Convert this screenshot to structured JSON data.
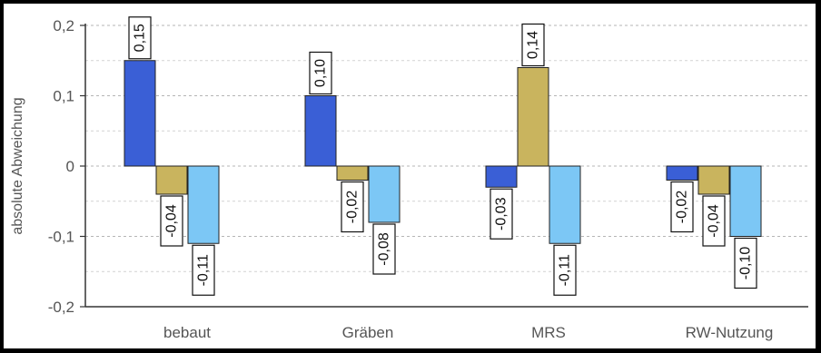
{
  "chart_data": {
    "type": "bar",
    "categories": [
      "bebaut",
      "Gräben",
      "MRS",
      "RW-Nutzung"
    ],
    "series": [
      {
        "color": "#3a5fd6",
        "values": [
          0.15,
          0.1,
          -0.03,
          -0.02
        ],
        "labels": [
          "0,15",
          "0,10",
          "-0,03",
          "-0,02"
        ]
      },
      {
        "color": "#c9b45e",
        "values": [
          -0.04,
          -0.02,
          0.14,
          -0.04
        ],
        "labels": [
          "-0,04",
          "-0,02",
          "0,14",
          "-0,04"
        ]
      },
      {
        "color": "#7cc7f5",
        "values": [
          -0.11,
          -0.08,
          -0.11,
          -0.1
        ],
        "labels": [
          "-0,11",
          "-0,08",
          "-0,11",
          "-0,10"
        ]
      }
    ],
    "ylabel": "absolute Abweichung",
    "ylim": [
      -0.2,
      0.2
    ],
    "yticks": [
      0.2,
      0.1,
      0,
      -0.1,
      -0.2
    ],
    "ytick_labels": [
      "0,2",
      "0,1",
      "0",
      "-0,1",
      "-0,2"
    ],
    "grid": true,
    "legend": "none"
  }
}
